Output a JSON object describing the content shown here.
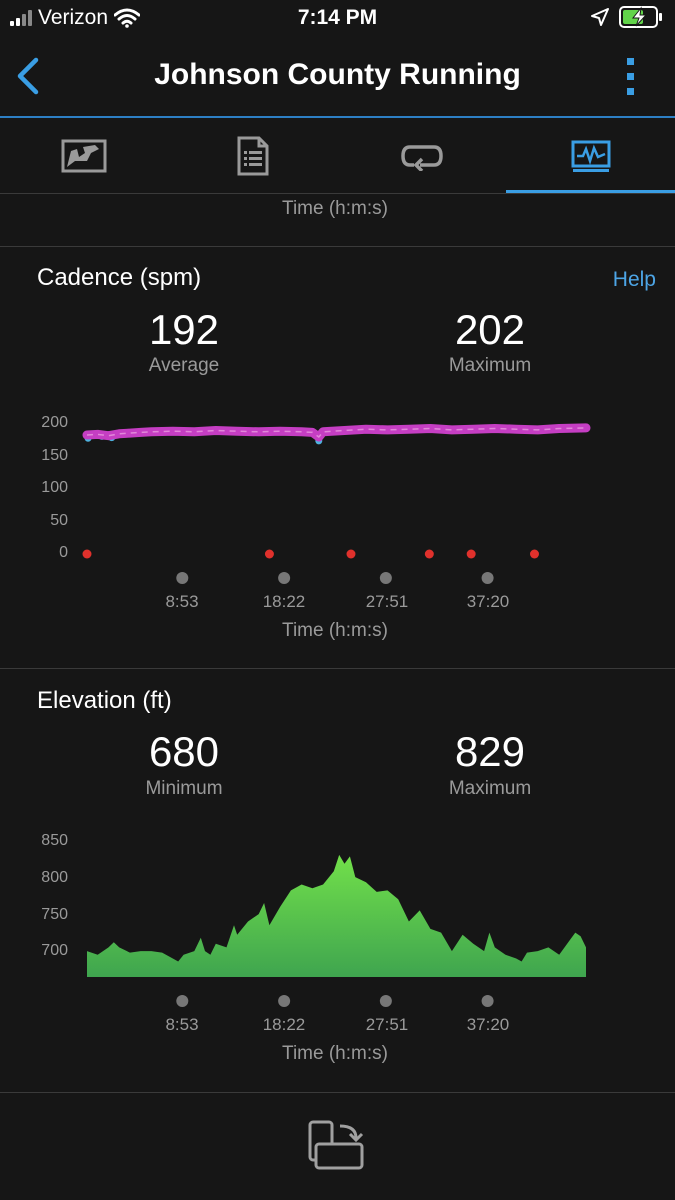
{
  "status_bar": {
    "carrier": "Verizon",
    "time": "7:14 PM",
    "icons": [
      "signal-icon",
      "wifi-icon",
      "location-icon",
      "battery-charging-icon"
    ]
  },
  "nav": {
    "title": "Johnson County Running",
    "icons": [
      "back-chevron-icon",
      "more-vertical-icon"
    ]
  },
  "tabs": [
    {
      "icon": "map-icon",
      "active": false
    },
    {
      "icon": "details-list-icon",
      "active": false
    },
    {
      "icon": "laps-loop-icon",
      "active": false
    },
    {
      "icon": "charts-icon",
      "active": true
    }
  ],
  "top_partial": {
    "x_axis_title": "Time (h:m:s)"
  },
  "cadence": {
    "title": "Cadence (spm)",
    "help": "Help",
    "average_value": "192",
    "average_label": "Average",
    "max_value": "202",
    "max_label": "Maximum",
    "x_axis_title": "Time (h:m:s)",
    "colors": {
      "line_primary": "#c53ec3",
      "line_low": "#4fb3e0",
      "markers": "#e0312c",
      "time_markers": "#777777"
    }
  },
  "elevation": {
    "title": "Elevation (ft)",
    "min_value": "680",
    "min_label": "Minimum",
    "max_value": "829",
    "max_label": "Maximum",
    "x_axis_title": "Time (h:m:s)",
    "colors": {
      "fill_top": "#72e04a",
      "fill_bottom": "#3fa54f"
    }
  },
  "chart_data": [
    {
      "type": "line",
      "title": "Cadence (spm)",
      "xlabel": "Time (h:m:s)",
      "ylabel": "",
      "ylim": [
        0,
        200
      ],
      "yticks": [
        "200",
        "150",
        "100",
        "50",
        "0"
      ],
      "xticks": [
        "8:53",
        "18:22",
        "27:51",
        "37:20"
      ],
      "xtick_minutes": [
        8.88,
        18.37,
        27.85,
        37.33
      ],
      "x_minutes_range": [
        0,
        46.5
      ],
      "series": [
        {
          "x": [
            0,
            1,
            2,
            3,
            4,
            5,
            6,
            8,
            10,
            12,
            14,
            16,
            18,
            20,
            21,
            21.6,
            22,
            24,
            26,
            28,
            30,
            32,
            34,
            36,
            38,
            40,
            42,
            44,
            46.5
          ],
          "values": [
            183,
            184,
            182,
            185,
            186,
            187,
            188,
            189,
            188,
            190,
            189,
            188,
            189,
            188,
            187,
            180,
            188,
            190,
            192,
            191,
            192,
            193,
            191,
            192,
            193,
            192,
            191,
            193,
            194
          ]
        }
      ],
      "low_points": [
        {
          "x": 0.1,
          "value": 178
        },
        {
          "x": 1.4,
          "value": 181
        },
        {
          "x": 2.3,
          "value": 179
        },
        {
          "x": 21.6,
          "value": 174
        }
      ],
      "zero_markers_x": [
        0,
        17,
        24.6,
        31.9,
        35.8,
        41.7
      ]
    },
    {
      "type": "area",
      "title": "Elevation (ft)",
      "xlabel": "Time (h:m:s)",
      "ylabel": "",
      "ylim": [
        665,
        850
      ],
      "yticks": [
        "850",
        "800",
        "750",
        "700"
      ],
      "xticks": [
        "8:53",
        "18:22",
        "27:51",
        "37:20"
      ],
      "xtick_minutes": [
        8.88,
        18.37,
        27.85,
        37.33
      ],
      "x_minutes_range": [
        0,
        46.5
      ],
      "x": [
        0,
        1,
        2,
        2.5,
        3,
        4,
        5,
        6,
        7,
        8,
        8.5,
        9,
        10,
        10.6,
        11,
        11.5,
        12,
        13,
        13.7,
        14,
        15,
        16,
        16.5,
        17,
        18,
        19,
        20,
        21,
        22,
        23,
        23.5,
        24,
        24.5,
        25,
        26,
        27,
        28,
        29,
        30,
        31,
        32,
        33,
        34,
        35,
        36,
        37,
        37.5,
        38,
        39,
        40,
        40.5,
        41,
        42,
        43,
        44,
        45,
        45.5,
        46,
        46.5
      ],
      "values": [
        700,
        695,
        705,
        712,
        705,
        698,
        700,
        700,
        698,
        690,
        686,
        695,
        700,
        718,
        700,
        695,
        710,
        705,
        735,
        722,
        740,
        750,
        765,
        735,
        760,
        782,
        790,
        785,
        790,
        808,
        830,
        818,
        828,
        800,
        793,
        780,
        782,
        770,
        740,
        755,
        730,
        725,
        700,
        722,
        710,
        700,
        725,
        705,
        695,
        690,
        686,
        698,
        700,
        705,
        695,
        715,
        725,
        720,
        705
      ]
    }
  ]
}
